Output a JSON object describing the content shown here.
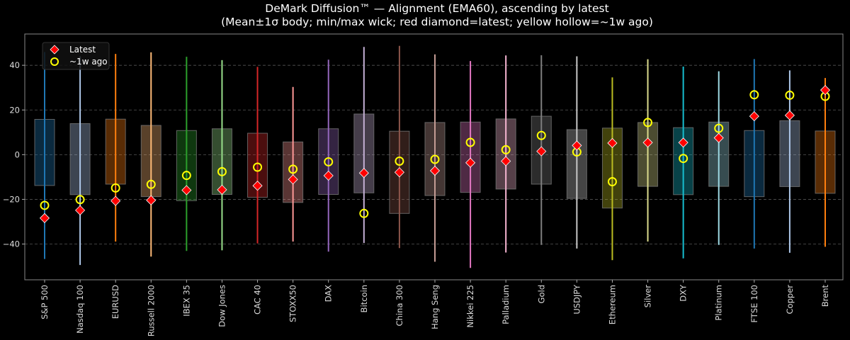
{
  "chart_data": {
    "type": "box",
    "title": "DeMark Diffusion™ — Alignment (EMA60), ascending by latest",
    "subtitle": "(Mean±1σ body; min/max wick; red diamond=latest; yellow hollow=~1w ago)",
    "xlabel": "",
    "ylabel": "",
    "ylim": [
      -56,
      54
    ],
    "yticks": [
      40,
      20,
      0,
      -20,
      -40
    ],
    "grid": "horizontal dashed",
    "legend": {
      "placement": "top-left",
      "entries": [
        "Latest",
        "~1w ago"
      ]
    },
    "colors": {
      "latest": "#ff0000",
      "week_ago": "#ffff00",
      "background": "#000000"
    },
    "categories": [
      "S&P 500",
      "Nasdaq 100",
      "EURUSD",
      "Russell 2000",
      "IBEX 35",
      "Dow Jones",
      "CAC 40",
      "STOXX50",
      "DAX",
      "Bitcoin",
      "China 300",
      "Hang Seng",
      "Nikkei 225",
      "Palladium",
      "Gold",
      "USDJPY",
      "Ethereum",
      "Silver",
      "DXY",
      "Platinum",
      "FTSE 100",
      "Copper",
      "Brent"
    ],
    "series_colors": [
      "#1f77b4",
      "#aec7e8",
      "#ff7f0e",
      "#ffbb78",
      "#2ca02c",
      "#98df8a",
      "#d62728",
      "#ff9896",
      "#9467bd",
      "#c5b0d5",
      "#8c564b",
      "#c49c94",
      "#e377c2",
      "#f7b6d2",
      "#7f7f7f",
      "#c7c7c7",
      "#bcbd22",
      "#dbdb8d",
      "#17becf",
      "#9edae5",
      "#1f77b4",
      "#aec7e8",
      "#ff7f0e"
    ],
    "max": [
      45.9,
      44.0,
      45.1,
      45.8,
      43.8,
      42.3,
      39.3,
      30.3,
      42.5,
      48.2,
      48.7,
      44.9,
      41.9,
      44.4,
      44.5,
      44.0,
      34.6,
      42.7,
      39.4,
      37.3,
      42.8,
      37.7,
      34.3
    ],
    "min": [
      -46.7,
      -49.4,
      -38.9,
      -45.6,
      -43.1,
      -42.8,
      -39.7,
      -38.9,
      -43.4,
      -39.5,
      -41.8,
      -47.9,
      -50.7,
      -43.8,
      -40.4,
      -42.0,
      -47.2,
      -38.9,
      -46.4,
      -40.4,
      -42.0,
      -43.9,
      -41.2
    ],
    "body_high": [
      15.8,
      13.9,
      15.9,
      13.1,
      10.8,
      11.6,
      9.6,
      5.7,
      11.6,
      18.2,
      10.5,
      14.4,
      14.6,
      16.0,
      17.2,
      11.2,
      11.9,
      14.4,
      12.1,
      14.6,
      10.8,
      15.2,
      10.6
    ],
    "body_low": [
      -13.8,
      -17.9,
      -13.2,
      -18.8,
      -20.6,
      -17.8,
      -19.1,
      -21.4,
      -17.8,
      -17.1,
      -26.3,
      -18.3,
      -16.9,
      -15.4,
      -13.2,
      -19.6,
      -23.9,
      -14.2,
      -17.9,
      -14.2,
      -18.8,
      -14.3,
      -17.3
    ],
    "latest": [
      -28.4,
      -24.9,
      -20.7,
      -20.4,
      -15.9,
      -15.7,
      -13.9,
      -11.1,
      -9.4,
      -8.2,
      -7.9,
      -7.2,
      -3.6,
      -2.9,
      1.5,
      4.1,
      5.2,
      5.4,
      5.4,
      7.5,
      17.2,
      17.6,
      28.9
    ],
    "week_ago": [
      -22.7,
      -20.1,
      -14.9,
      -13.3,
      -9.3,
      -7.6,
      -5.6,
      -6.5,
      -3.2,
      -26.3,
      -2.9,
      -2.1,
      5.5,
      2.2,
      8.6,
      1.2,
      -12.1,
      14.4,
      -1.7,
      11.8,
      26.8,
      26.6,
      26.1
    ]
  }
}
